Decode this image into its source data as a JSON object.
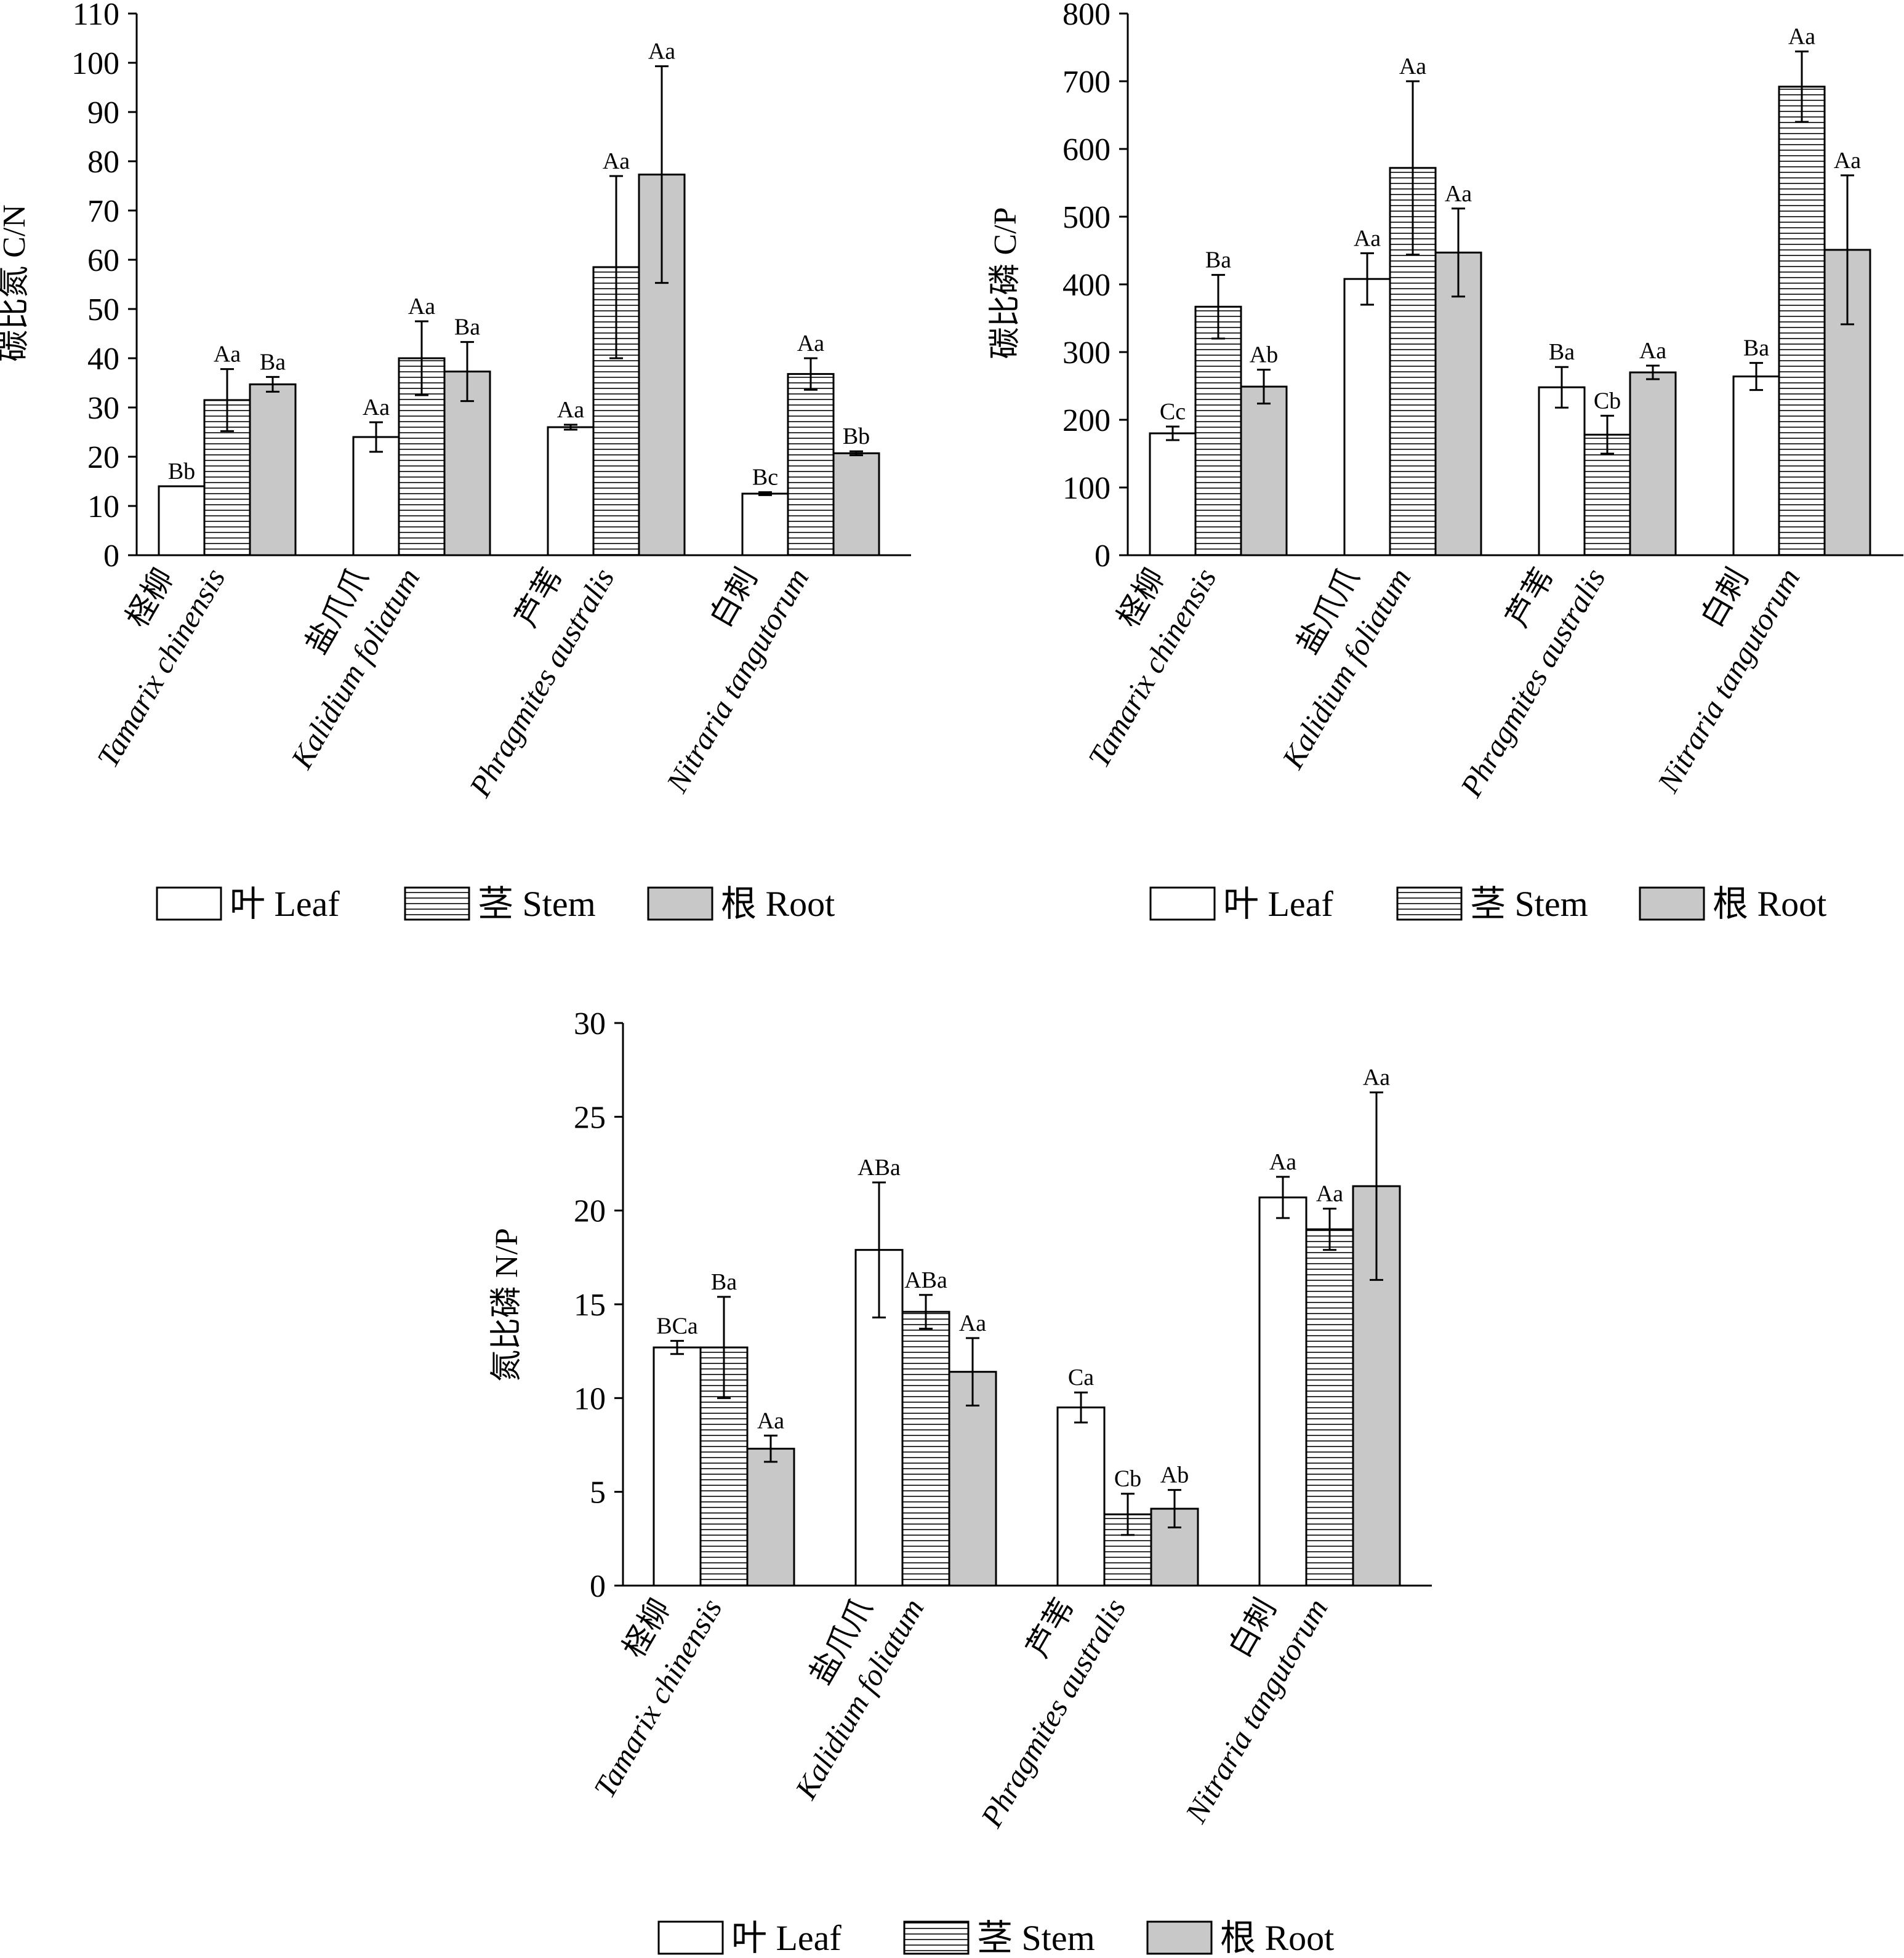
{
  "legend": [
    {
      "key": "leaf",
      "label": "叶 Leaf",
      "fill": "#ffffff",
      "pattern": "none"
    },
    {
      "key": "stem",
      "label": "茎 Stem",
      "fill": "#ffffff",
      "pattern": "hlines"
    },
    {
      "key": "root",
      "label": "根 Root",
      "fill": "#c8c8c8",
      "pattern": "none"
    }
  ],
  "colors": {
    "axis": "#000000",
    "root_fill": "#c8c8c8",
    "stem_lines": "#000000"
  },
  "chart_data": [
    {
      "type": "bar",
      "ylabel": "碳比氮 C/N",
      "ylim": [
        0,
        110
      ],
      "yticks": [
        0,
        10,
        20,
        30,
        40,
        50,
        60,
        70,
        80,
        90,
        100,
        110
      ],
      "categories": [
        {
          "cn": "柽柳",
          "en": "Tamarix chinensis"
        },
        {
          "cn": "盐爪爪",
          "en": "Kalidium foliatum"
        },
        {
          "cn": "芦苇",
          "en": "Phragmites australis"
        },
        {
          "cn": "白刺",
          "en": "Nitraria tangutorum"
        }
      ],
      "series": [
        {
          "name": "叶 Leaf",
          "values": [
            14,
            24,
            26,
            12.5
          ],
          "errors": [
            0,
            3,
            0.5,
            0.3
          ],
          "labels": [
            "Bb",
            "Aa",
            "Aa",
            "Bc"
          ]
        },
        {
          "name": "茎 Stem",
          "values": [
            31.5,
            40,
            58.5,
            36.8
          ],
          "errors": [
            6.3,
            7.5,
            18.5,
            3.2
          ],
          "labels": [
            "Aa",
            "Aa",
            "Aa",
            "Aa"
          ]
        },
        {
          "name": "根 Root",
          "values": [
            34.7,
            37.3,
            77.3,
            20.7
          ],
          "errors": [
            1.5,
            6,
            22,
            0.4
          ],
          "labels": [
            "Ba",
            "Ba",
            "Aa",
            "Bb"
          ]
        }
      ]
    },
    {
      "type": "bar",
      "ylabel": "碳比磷 C/P",
      "ylim": [
        0,
        800
      ],
      "yticks": [
        0,
        100,
        200,
        300,
        400,
        500,
        600,
        700,
        800
      ],
      "categories": [
        {
          "cn": "柽柳",
          "en": "Tamarix chinensis"
        },
        {
          "cn": "盐爪爪",
          "en": "Kalidium foliatum"
        },
        {
          "cn": "芦苇",
          "en": "Phragmites australis"
        },
        {
          "cn": "白刺",
          "en": "Nitraria tangutorum"
        }
      ],
      "series": [
        {
          "name": "叶 Leaf",
          "values": [
            180,
            408,
            248,
            264
          ],
          "errors": [
            10,
            38,
            30,
            20
          ],
          "labels": [
            "Cc",
            "Aa",
            "Ba",
            "Ba"
          ]
        },
        {
          "name": "茎 Stem",
          "values": [
            367,
            572,
            178,
            692
          ],
          "errors": [
            47,
            128,
            28,
            52
          ],
          "labels": [
            "Ba",
            "Aa",
            "Cb",
            "Aa"
          ]
        },
        {
          "name": "根 Root",
          "values": [
            249,
            447,
            270,
            451
          ],
          "errors": [
            25,
            65,
            10,
            110
          ],
          "labels": [
            "Ab",
            "Aa",
            "Aa",
            "Aa"
          ]
        }
      ]
    },
    {
      "type": "bar",
      "ylabel": "氮比磷 N/P",
      "ylim": [
        0,
        30
      ],
      "yticks": [
        0,
        5,
        10,
        15,
        20,
        25,
        30
      ],
      "categories": [
        {
          "cn": "柽柳",
          "en": "Tamarix chinensis"
        },
        {
          "cn": "盐爪爪",
          "en": "Kalidium foliatum"
        },
        {
          "cn": "芦苇",
          "en": "Phragmites australis"
        },
        {
          "cn": "白刺",
          "en": "Nitraria tangutorum"
        }
      ],
      "series": [
        {
          "name": "叶 Leaf",
          "values": [
            12.7,
            17.9,
            9.5,
            20.7
          ],
          "errors": [
            0.35,
            3.6,
            0.8,
            1.1
          ],
          "labels": [
            "BCa",
            "ABa",
            "Ca",
            "Aa"
          ]
        },
        {
          "name": "茎 Stem",
          "values": [
            12.7,
            14.6,
            3.8,
            19.0
          ],
          "errors": [
            2.7,
            0.9,
            1.1,
            1.1
          ],
          "labels": [
            "Ba",
            "ABa",
            "Cb",
            "Aa"
          ]
        },
        {
          "name": "根 Root",
          "values": [
            7.3,
            11.4,
            4.1,
            21.3
          ],
          "errors": [
            0.7,
            1.8,
            1.0,
            5.0
          ],
          "labels": [
            "Aa",
            "Aa",
            "Ab",
            "Aa"
          ]
        }
      ]
    }
  ]
}
